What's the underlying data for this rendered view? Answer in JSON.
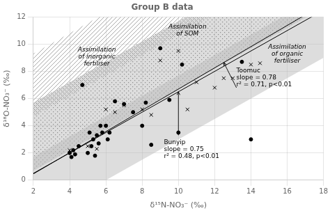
{
  "chart_data": {
    "type": "scatter",
    "title": "Group B data",
    "xlabel": "δ¹⁵N-NO₃⁻ (‰)",
    "ylabel": "δ¹⁸O-NO₃⁻ (‰)",
    "xlim": [
      2,
      18
    ],
    "ylim": [
      0,
      12
    ],
    "xticks": [
      2,
      4,
      6,
      8,
      10,
      12,
      14,
      16,
      18
    ],
    "yticks": [
      0,
      2,
      4,
      6,
      8,
      10,
      12
    ],
    "series": [
      {
        "type": "hatched_band",
        "color": "#aaaaaa",
        "slope": 0.75,
        "low": 3.2,
        "high": 7.8,
        "label": "Assimilation\nof inorganic\nfertiliser"
      },
      {
        "type": "dotted_band",
        "color": "#aaaaaa",
        "slope": 0.75,
        "low": -0.8,
        "high": 4.2,
        "label": "Assimilation\nof SOM"
      },
      {
        "type": "band",
        "color": "#bbbbbb",
        "slope": 0.75,
        "low": -4.5,
        "high": 0.2,
        "label": "Assimilation\nof organic\nfertiliser"
      },
      {
        "type": "line",
        "color": "#000000",
        "slope": 0.75,
        "intercept": -1.0,
        "label": "Bunyip\nslope = 0.75\nr² = 0.48, p<0.01"
      },
      {
        "type": "line",
        "color": "#000000",
        "slope": 0.78,
        "intercept": -1.1,
        "label": "Toomuc\nslope = 0.78\nr² = 0.71, p<0.01"
      },
      {
        "type": "scatter",
        "marker": "circle",
        "color": "#000000",
        "x": [
          4.0,
          4.1,
          4.2,
          4.3,
          4.5,
          4.7,
          5.0,
          5.1,
          5.2,
          5.3,
          5.4,
          5.5,
          5.6,
          5.7,
          5.8,
          6.0,
          6.1,
          6.2,
          6.5,
          7.0,
          7.5,
          8.0,
          8.2,
          8.5,
          9.0,
          9.5,
          10.0,
          10.2,
          13.5,
          14.0
        ],
        "values": [
          2.0,
          1.7,
          2.2,
          1.9,
          2.5,
          7.0,
          2.0,
          3.5,
          2.5,
          3.0,
          1.8,
          3.3,
          2.7,
          4.0,
          3.5,
          4.0,
          3.0,
          3.5,
          5.8,
          5.6,
          5.0,
          4.0,
          5.7,
          2.6,
          9.7,
          5.9,
          3.5,
          8.5,
          8.7,
          3.0
        ]
      },
      {
        "type": "scatter",
        "marker": "x",
        "color": "#000000",
        "x": [
          4.0,
          5.0,
          5.5,
          6.0,
          6.5,
          7.0,
          8.0,
          8.5,
          9.0,
          10.0,
          10.5,
          11.0,
          12.0,
          12.5,
          13.0,
          14.0,
          14.5
        ],
        "values": [
          2.2,
          2.5,
          2.3,
          5.2,
          5.0,
          5.5,
          5.2,
          4.8,
          8.8,
          9.5,
          5.2,
          7.2,
          6.8,
          7.5,
          7.5,
          8.5,
          8.6
        ]
      }
    ]
  }
}
